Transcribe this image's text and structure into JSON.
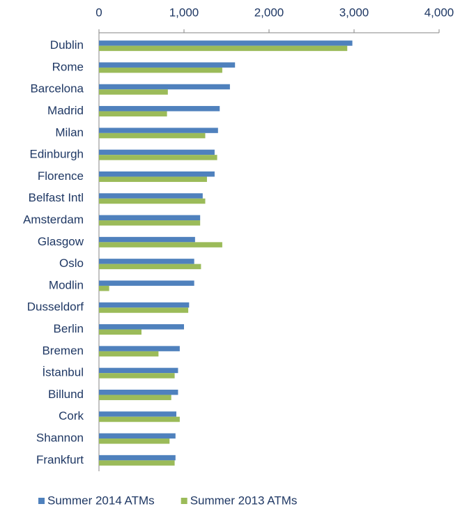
{
  "chart_data": {
    "type": "hbar",
    "categories": [
      "Dublin",
      "Rome",
      "Barcelona",
      "Madrid",
      "Milan",
      "Edinburgh",
      "Florence",
      "Belfast Intl",
      "Amsterdam",
      "Glasgow",
      "Oslo",
      "Modlin",
      "Dusseldorf",
      "Berlin",
      "Bremen",
      "İstanbul",
      "Billund",
      "Cork",
      "Shannon",
      "Frankfurt"
    ],
    "series": [
      {
        "name": "Summer 2014 ATMs",
        "color": "#4f81bd",
        "values": [
          2980,
          1600,
          1540,
          1420,
          1400,
          1360,
          1360,
          1220,
          1190,
          1130,
          1120,
          1120,
          1060,
          1000,
          950,
          930,
          930,
          910,
          900,
          900
        ]
      },
      {
        "name": "Summer 2013 ATMs",
        "color": "#9bbb59",
        "values": [
          2920,
          1450,
          810,
          800,
          1250,
          1390,
          1270,
          1250,
          1190,
          1450,
          1200,
          120,
          1050,
          500,
          700,
          890,
          850,
          950,
          830,
          890
        ]
      }
    ],
    "xlim": [
      0,
      4000
    ],
    "xticks": [
      0,
      {
        "value": 1000,
        "label": "1,000"
      },
      {
        "value": 2000,
        "label": "2,000"
      },
      {
        "value": 3000,
        "label": "3,000"
      },
      {
        "value": 4000,
        "label": "4,000"
      }
    ],
    "legend": "bottom"
  }
}
